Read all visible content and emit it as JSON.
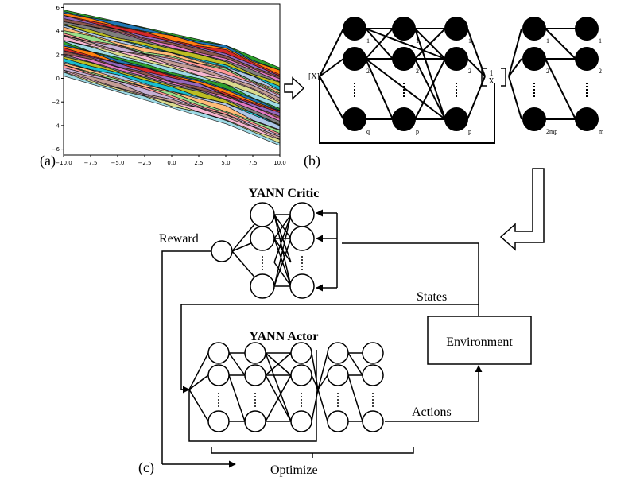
{
  "panel_labels": {
    "a": "(a)",
    "b": "(b)",
    "c": "(c)"
  },
  "plot_a": {
    "x_ticks": [
      "−10.0",
      "−7.5",
      "−5.0",
      "−2.5",
      "0.0",
      "2.5",
      "5.0",
      "7.5",
      "10.0"
    ],
    "y_ticks": [
      "6",
      "4",
      "2",
      "0",
      "−2",
      "−4",
      "−6"
    ],
    "x_range": [
      -10,
      10
    ],
    "y_range": [
      -6.5,
      6.3
    ],
    "band_colors": [
      "#2ca02c",
      "#1f77b4",
      "#ff7f0e",
      "#d62728",
      "#9467bd",
      "#8c564b",
      "#e377c2",
      "#7f7f7f",
      "#bcbd22",
      "#17becf",
      "#aec7e8",
      "#ffbb78",
      "#98df8a",
      "#ff9896",
      "#c5b0d5",
      "#c49c94",
      "#f7b6d2",
      "#dbdb8d",
      "#9edae5"
    ]
  },
  "panel_b": {
    "input_label": "[X]",
    "stack_top": "1",
    "stack_bottom": "X",
    "col1_labels": [
      "1",
      "2",
      "q"
    ],
    "col2_labels": [
      "1",
      "2",
      "p"
    ],
    "col3_labels": [
      "1",
      "2",
      "p"
    ],
    "col4_labels": [
      "1",
      "2",
      "2mp"
    ],
    "col5_labels": [
      "1",
      "2",
      "m"
    ]
  },
  "panel_c": {
    "critic_title": "YANN Critic",
    "actor_title": "YANN Actor",
    "reward_label": "Reward",
    "states_label": "States",
    "actions_label": "Actions",
    "optimize_label": "Optimize",
    "environment_label": "Environment"
  }
}
